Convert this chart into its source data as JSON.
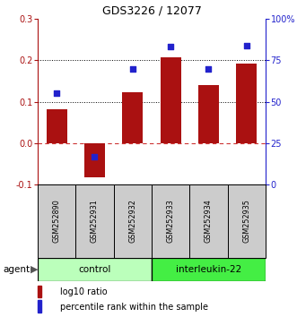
{
  "title": "GDS3226 / 12077",
  "samples": [
    "GSM252890",
    "GSM252931",
    "GSM252932",
    "GSM252933",
    "GSM252934",
    "GSM252935"
  ],
  "log10_ratio": [
    0.082,
    -0.082,
    0.122,
    0.207,
    0.14,
    0.191
  ],
  "percentile_rank": [
    55,
    17,
    70,
    83,
    70,
    84
  ],
  "ylim_left": [
    -0.1,
    0.3
  ],
  "ylim_right": [
    0,
    100
  ],
  "yticks_left": [
    -0.1,
    0.0,
    0.1,
    0.2,
    0.3
  ],
  "yticks_right": [
    0,
    25,
    50,
    75,
    100
  ],
  "ytick_labels_right": [
    "0",
    "25",
    "50",
    "75",
    "100%"
  ],
  "bar_color": "#aa1111",
  "dot_color": "#2222cc",
  "hline_zero_color": "#cc3333",
  "hline_dotted_color": "#000000",
  "groups": [
    {
      "label": "control",
      "indices": [
        0,
        1,
        2
      ],
      "color": "#bbffbb"
    },
    {
      "label": "interleukin-22",
      "indices": [
        3,
        4,
        5
      ],
      "color": "#44ee44"
    }
  ],
  "agent_label": "agent",
  "legend_bar_label": "log10 ratio",
  "legend_dot_label": "percentile rank within the sample",
  "background_color": "#ffffff",
  "sample_box_color": "#cccccc",
  "fig_width": 3.31,
  "fig_height": 3.54,
  "dpi": 100
}
